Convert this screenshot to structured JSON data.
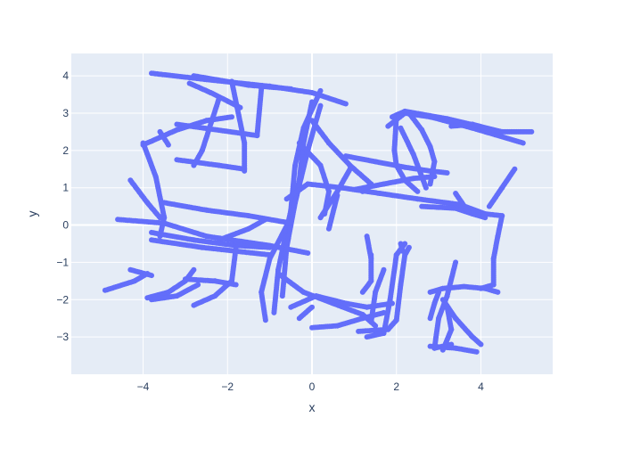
{
  "chart_data": {
    "type": "scatter",
    "title": "",
    "xlabel": "x",
    "ylabel": "y",
    "xlim": [
      -5.7,
      5.7
    ],
    "ylim": [
      -4,
      4.6
    ],
    "x_ticks": [
      -4,
      -2,
      0,
      2,
      4
    ],
    "y_ticks": [
      -3,
      -2,
      -1,
      0,
      1,
      2,
      3,
      4
    ],
    "x_tick_labels": [
      "−4",
      "−2",
      "0",
      "2",
      "4"
    ],
    "y_tick_labels": [
      "−3",
      "−2",
      "−1",
      "0",
      "1",
      "2",
      "3",
      "4"
    ],
    "grid": true,
    "legend": "none",
    "colors": {
      "plot_bg": "#e5ecf6",
      "grid": "#ffffff",
      "marker": "#636efa",
      "text": "#2a3f5f"
    },
    "series": [
      {
        "strokes": [
          [
            [
              -3.8,
              4.07
            ],
            [
              -2.5,
              3.9
            ],
            [
              -1.0,
              3.72
            ],
            [
              0.0,
              3.55
            ],
            [
              0.8,
              3.25
            ]
          ],
          [
            [
              -2.8,
              4.0
            ],
            [
              -1.5,
              3.75
            ],
            [
              -0.5,
              3.65
            ]
          ],
          [
            [
              -4.0,
              2.15
            ],
            [
              -3.2,
              2.55
            ],
            [
              -2.5,
              2.8
            ],
            [
              -1.9,
              2.9
            ]
          ],
          [
            [
              -2.9,
              3.8
            ],
            [
              -2.4,
              3.55
            ],
            [
              -1.7,
              3.15
            ]
          ],
          [
            [
              -1.9,
              3.85
            ],
            [
              -1.6,
              2.2
            ],
            [
              -1.6,
              1.45
            ]
          ],
          [
            [
              -1.2,
              3.65
            ],
            [
              -1.3,
              2.4
            ],
            [
              -3.2,
              2.7
            ]
          ],
          [
            [
              -3.2,
              1.75
            ],
            [
              -2.2,
              1.6
            ],
            [
              -1.6,
              1.5
            ]
          ],
          [
            [
              -2.2,
              3.4
            ],
            [
              -2.6,
              2.0
            ],
            [
              -2.8,
              1.6
            ]
          ],
          [
            [
              -3.6,
              2.5
            ],
            [
              -3.4,
              2.15
            ]
          ],
          [
            [
              -4.0,
              2.2
            ],
            [
              -3.7,
              1.3
            ],
            [
              -3.5,
              0.2
            ],
            [
              -3.6,
              -0.3
            ]
          ],
          [
            [
              -4.3,
              1.2
            ],
            [
              -3.9,
              0.6
            ],
            [
              -3.6,
              0.2
            ]
          ],
          [
            [
              -4.6,
              0.15
            ],
            [
              -3.5,
              0.05
            ],
            [
              -2.5,
              -0.3
            ],
            [
              -1.0,
              -0.55
            ],
            [
              -0.1,
              -0.75
            ]
          ],
          [
            [
              -3.5,
              0.6
            ],
            [
              -2.5,
              0.4
            ],
            [
              -1.5,
              0.25
            ],
            [
              -0.5,
              0.05
            ]
          ],
          [
            [
              -3.8,
              -0.2
            ],
            [
              -2.8,
              -0.4
            ],
            [
              -1.8,
              -0.55
            ],
            [
              -1.0,
              -0.6
            ]
          ],
          [
            [
              -3.8,
              -0.4
            ],
            [
              -2.6,
              -0.6
            ],
            [
              -1.0,
              -0.8
            ]
          ],
          [
            [
              -2.2,
              -0.4
            ],
            [
              -1.5,
              -0.1
            ],
            [
              -1.1,
              0.15
            ]
          ],
          [
            [
              -4.9,
              -1.75
            ],
            [
              -4.2,
              -1.5
            ],
            [
              -3.9,
              -1.3
            ]
          ],
          [
            [
              -4.3,
              -1.2
            ],
            [
              -3.8,
              -1.35
            ]
          ],
          [
            [
              -3.9,
              -1.95
            ],
            [
              -3.4,
              -1.8
            ],
            [
              -3.0,
              -1.5
            ],
            [
              -2.8,
              -1.2
            ]
          ],
          [
            [
              -3.8,
              -2.0
            ],
            [
              -3.2,
              -1.9
            ],
            [
              -2.7,
              -1.6
            ]
          ],
          [
            [
              -2.8,
              -2.15
            ],
            [
              -2.3,
              -1.9
            ],
            [
              -1.9,
              -1.5
            ],
            [
              -1.8,
              -0.6
            ]
          ],
          [
            [
              -3.0,
              -1.45
            ],
            [
              -2.3,
              -1.5
            ],
            [
              -1.8,
              -1.6
            ]
          ],
          [
            [
              -1.1,
              -2.55
            ],
            [
              -1.2,
              -1.8
            ],
            [
              -1.0,
              -0.9
            ],
            [
              -0.5,
              0.2
            ],
            [
              -0.3,
              1.2
            ],
            [
              -0.2,
              2.2
            ],
            [
              0.0,
              3.3
            ]
          ],
          [
            [
              -0.9,
              -2.35
            ],
            [
              -0.8,
              -1.2
            ],
            [
              -0.5,
              0.4
            ],
            [
              -0.4,
              1.6
            ],
            [
              -0.2,
              2.6
            ],
            [
              0.2,
              3.6
            ]
          ],
          [
            [
              -0.7,
              -1.9
            ],
            [
              -0.6,
              -0.6
            ],
            [
              -0.4,
              0.6
            ],
            [
              -0.1,
              2.0
            ],
            [
              0.2,
              3.2
            ]
          ],
          [
            [
              -0.3,
              -2.5
            ],
            [
              0.0,
              -2.2
            ]
          ],
          [
            [
              -0.8,
              -1.3
            ],
            [
              -0.2,
              -1.8
            ],
            [
              0.5,
              -2.1
            ],
            [
              1.2,
              -2.4
            ],
            [
              1.5,
              -2.7
            ]
          ],
          [
            [
              -0.5,
              -2.2
            ],
            [
              0.1,
              -1.9
            ],
            [
              0.8,
              -2.1
            ],
            [
              1.3,
              -2.2
            ],
            [
              1.9,
              -2.1
            ]
          ],
          [
            [
              0.0,
              -2.75
            ],
            [
              0.6,
              -2.7
            ],
            [
              1.2,
              -2.5
            ],
            [
              1.7,
              -2.35
            ]
          ],
          [
            [
              -0.6,
              0.7
            ],
            [
              -0.1,
              1.1
            ],
            [
              0.7,
              1.0
            ],
            [
              1.6,
              0.85
            ],
            [
              2.5,
              0.7
            ],
            [
              3.5,
              0.55
            ],
            [
              4.1,
              0.3
            ],
            [
              4.5,
              0.25
            ]
          ],
          [
            [
              4.5,
              0.25
            ],
            [
              4.4,
              -0.3
            ],
            [
              4.3,
              -0.9
            ],
            [
              4.3,
              -1.6
            ],
            [
              4.0,
              -1.7
            ]
          ],
          [
            [
              -0.3,
              2.2
            ],
            [
              0.2,
              1.6
            ],
            [
              0.4,
              0.9
            ],
            [
              0.3,
              0.3
            ]
          ],
          [
            [
              0.0,
              2.8
            ],
            [
              0.4,
              2.2
            ],
            [
              0.9,
              1.6
            ],
            [
              1.4,
              1.1
            ],
            [
              1.2,
              0.9
            ]
          ],
          [
            [
              0.2,
              0.2
            ],
            [
              0.6,
              0.9
            ],
            [
              0.9,
              1.5
            ]
          ],
          [
            [
              0.4,
              -0.1
            ],
            [
              0.6,
              0.8
            ]
          ],
          [
            [
              0.8,
              1.85
            ],
            [
              1.5,
              1.7
            ],
            [
              2.2,
              1.55
            ],
            [
              2.8,
              1.45
            ],
            [
              3.2,
              1.4
            ]
          ],
          [
            [
              1.0,
              0.95
            ],
            [
              1.7,
              1.1
            ],
            [
              2.4,
              1.25
            ],
            [
              2.9,
              1.3
            ]
          ],
          [
            [
              1.8,
              2.65
            ],
            [
              2.2,
              3.0
            ],
            [
              2.8,
              2.9
            ],
            [
              3.8,
              2.6
            ],
            [
              5.0,
              2.2
            ]
          ],
          [
            [
              1.9,
              2.9
            ],
            [
              2.2,
              3.05
            ],
            [
              3.2,
              2.85
            ],
            [
              4.5,
              2.5
            ],
            [
              5.2,
              2.5
            ]
          ],
          [
            [
              2.0,
              2.9
            ],
            [
              1.95,
              2.0
            ],
            [
              2.0,
              1.6
            ],
            [
              2.2,
              1.2
            ],
            [
              2.5,
              0.9
            ]
          ],
          [
            [
              2.3,
              3.0
            ],
            [
              2.6,
              2.55
            ],
            [
              2.8,
              2.1
            ],
            [
              2.9,
              1.7
            ],
            [
              2.8,
              1.1
            ]
          ],
          [
            [
              2.1,
              2.6
            ],
            [
              2.4,
              1.9
            ],
            [
              2.6,
              1.3
            ],
            [
              2.7,
              1.0
            ]
          ],
          [
            [
              2.6,
              0.5
            ],
            [
              3.4,
              0.45
            ],
            [
              3.8,
              0.3
            ],
            [
              4.1,
              0.2
            ]
          ],
          [
            [
              3.5,
              0.55
            ],
            [
              3.7,
              0.35
            ],
            [
              3.4,
              0.85
            ]
          ],
          [
            [
              4.2,
              0.5
            ],
            [
              4.5,
              1.0
            ],
            [
              4.8,
              1.5
            ]
          ],
          [
            [
              3.3,
              2.65
            ],
            [
              3.8,
              2.7
            ],
            [
              4.3,
              2.55
            ]
          ],
          [
            [
              1.1,
              -2.85
            ],
            [
              1.8,
              -2.8
            ],
            [
              2.0,
              -2.55
            ],
            [
              2.1,
              -1.6
            ],
            [
              2.2,
              -0.8
            ],
            [
              2.3,
              -0.6
            ]
          ],
          [
            [
              1.3,
              -3.0
            ],
            [
              1.7,
              -2.9
            ],
            [
              1.85,
              -2.0
            ],
            [
              2.0,
              -0.8
            ],
            [
              2.2,
              -0.5
            ]
          ],
          [
            [
              1.4,
              -2.6
            ],
            [
              1.5,
              -1.8
            ],
            [
              1.7,
              -1.2
            ]
          ],
          [
            [
              1.2,
              -1.8
            ],
            [
              1.4,
              -1.5
            ],
            [
              1.4,
              -0.8
            ]
          ],
          [
            [
              1.3,
              -0.3
            ],
            [
              1.4,
              -0.9
            ]
          ],
          [
            [
              2.1,
              -0.5
            ],
            [
              2.15,
              -0.7
            ]
          ],
          [
            [
              2.8,
              -3.25
            ],
            [
              3.4,
              -3.3
            ],
            [
              3.9,
              -3.4
            ]
          ],
          [
            [
              3.3,
              -3.2
            ],
            [
              2.9,
              -3.3
            ],
            [
              3.0,
              -2.5
            ],
            [
              3.2,
              -1.9
            ],
            [
              3.4,
              -1.0
            ]
          ],
          [
            [
              2.8,
              -1.8
            ],
            [
              3.1,
              -1.7
            ],
            [
              3.6,
              -1.65
            ],
            [
              4.1,
              -1.7
            ],
            [
              4.4,
              -1.8
            ]
          ],
          [
            [
              2.8,
              -2.5
            ],
            [
              2.9,
              -2.1
            ],
            [
              3.0,
              -1.8
            ]
          ],
          [
            [
              3.1,
              -2.0
            ],
            [
              3.4,
              -2.5
            ],
            [
              3.8,
              -3.0
            ],
            [
              4.0,
              -3.2
            ]
          ],
          [
            [
              3.2,
              -2.2
            ],
            [
              3.3,
              -2.8
            ],
            [
              3.1,
              -3.35
            ]
          ]
        ]
      }
    ]
  }
}
